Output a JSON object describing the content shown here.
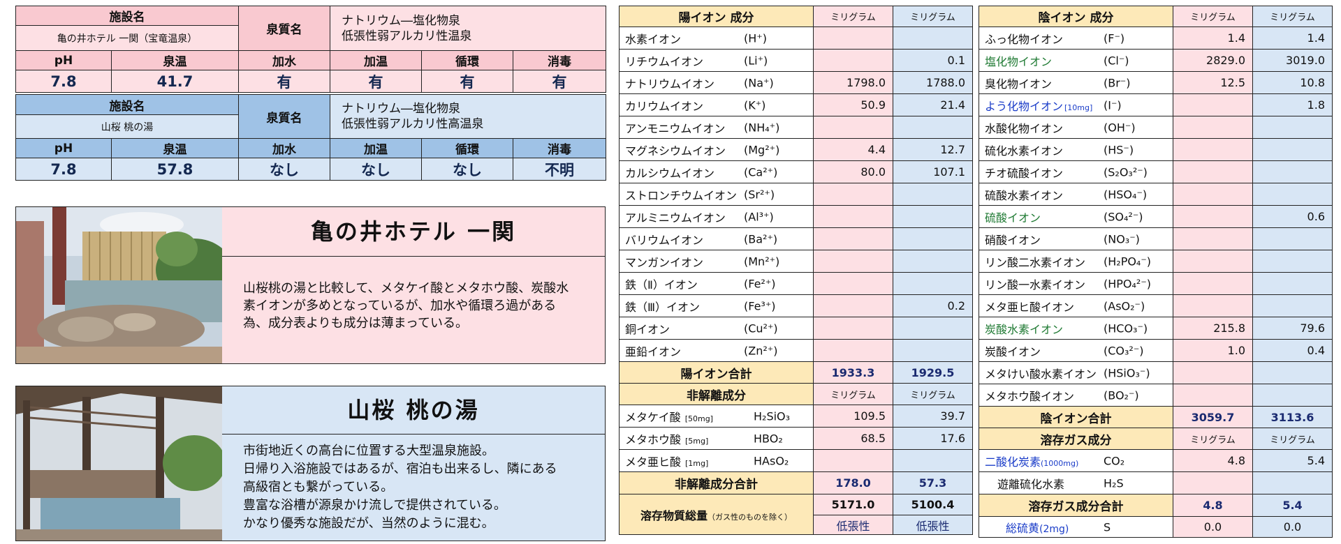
{
  "facility1": {
    "name_header": "施設名",
    "name": "亀の井ホテル 一関（宝竜温泉）",
    "quality_header": "泉質名",
    "quality_lines": [
      "ナトリウム―塩化物泉",
      "低張性弱アルカリ性温泉"
    ],
    "headers": [
      "pH",
      "泉温",
      "加水",
      "加温",
      "循環",
      "消毒"
    ],
    "values": [
      "7.8",
      "41.7",
      "有",
      "有",
      "有",
      "有"
    ]
  },
  "facility2": {
    "name_header": "施設名",
    "name": "山桜 桃の湯",
    "quality_header": "泉質名",
    "quality_lines": [
      "ナトリウム―塩化物泉",
      "低張性弱アルカリ性高温泉"
    ],
    "headers": [
      "pH",
      "泉温",
      "加水",
      "加温",
      "循環",
      "消毒"
    ],
    "values": [
      "7.8",
      "57.8",
      "なし",
      "なし",
      "なし",
      "不明"
    ]
  },
  "card1": {
    "title": "亀の井ホテル 一関",
    "lines": [
      "山桜桃の湯と比較して、メタケイ酸とメタホウ酸、炭酸水",
      "素イオンが多めとなっているが、加水や循環ろ過がある",
      "為、成分表よりも成分は薄まっている。"
    ]
  },
  "card2": {
    "title": "山桜 桃の湯",
    "lines": [
      "市街地近くの高台に位置する大型温泉施設。",
      "日帰り入浴施設ではあるが、宿泊も出来るし、隣にある",
      "高級宿とも繋がっている。",
      "豊富な浴槽が源泉かけ流しで提供されている。",
      "かなり優秀な施設だが、当然のように混む。"
    ]
  },
  "cation": {
    "header": "陽イオン 成分",
    "unit1": "ミリグラム",
    "unit2": "ミリグラム",
    "rows": [
      {
        "name": "水素イオン",
        "formula": "(H⁺)",
        "v1": "",
        "v2": ""
      },
      {
        "name": "リチウムイオン",
        "formula": "(Li⁺)",
        "v1": "",
        "v2": "0.1"
      },
      {
        "name": "ナトリウムイオン",
        "formula": "(Na⁺)",
        "v1": "1798.0",
        "v2": "1788.0"
      },
      {
        "name": "カリウムイオン",
        "formula": "(K⁺)",
        "v1": "50.9",
        "v2": "21.4"
      },
      {
        "name": "アンモニウムイオン",
        "formula": "(NH₄⁺)",
        "v1": "",
        "v2": ""
      },
      {
        "name": "マグネシウムイオン",
        "formula": "(Mg²⁺)",
        "v1": "4.4",
        "v2": "12.7"
      },
      {
        "name": "カルシウムイオン",
        "formula": "(Ca²⁺)",
        "v1": "80.0",
        "v2": "107.1"
      },
      {
        "name": "ストロンチウムイオン",
        "formula": "(Sr²⁺)",
        "v1": "",
        "v2": ""
      },
      {
        "name": "アルミニウムイオン",
        "formula": "(Al³⁺)",
        "v1": "",
        "v2": ""
      },
      {
        "name": "バリウムイオン",
        "formula": "(Ba²⁺)",
        "v1": "",
        "v2": ""
      },
      {
        "name": "マンガンイオン",
        "formula": "(Mn²⁺)",
        "v1": "",
        "v2": ""
      },
      {
        "name": "鉄（Ⅱ）イオン",
        "formula": "(Fe²⁺)",
        "v1": "",
        "v2": ""
      },
      {
        "name": "鉄（Ⅲ）イオン",
        "formula": "(Fe³⁺)",
        "v1": "",
        "v2": "0.2"
      },
      {
        "name": "銅イオン",
        "formula": "(Cu²⁺)",
        "v1": "",
        "v2": ""
      },
      {
        "name": "亜鉛イオン",
        "formula": "(Zn²⁺)",
        "v1": "",
        "v2": ""
      }
    ],
    "total_label": "陽イオン合計",
    "total1": "1933.3",
    "total2": "1929.5"
  },
  "nondiss": {
    "header": "非解離成分",
    "unit1": "ミリグラム",
    "unit2": "ミリグラム",
    "rows": [
      {
        "name": "メタケイ酸",
        "limit": "[50mg]",
        "formula": "H₂SiO₃",
        "v1": "109.5",
        "v2": "39.7"
      },
      {
        "name": "メタホウ酸",
        "limit": "[5mg]",
        "formula": "HBO₂",
        "v1": "68.5",
        "v2": "17.6"
      },
      {
        "name": "メタ亜ヒ酸",
        "limit": "[1mg]",
        "formula": "HAsO₂",
        "v1": "",
        "v2": ""
      }
    ],
    "total_label": "非解離成分合計",
    "total1": "178.0",
    "total2": "57.3",
    "dissolved_label": "溶存物質総量",
    "dissolved_note": "（ガス性のものを除く）",
    "dissolved1": "5171.0",
    "dissolved2": "5100.4",
    "tonicity1": "低張性",
    "tonicity2": "低張性"
  },
  "anion": {
    "header": "陰イオン 成分",
    "unit1": "ミリグラム",
    "unit2": "ミリグラム",
    "rows": [
      {
        "name": "ふっ化物イオン",
        "formula": "(F⁻)",
        "v1": "1.4",
        "v2": "1.4",
        "color": ""
      },
      {
        "name": "塩化物イオン",
        "formula": "(Cl⁻)",
        "v1": "2829.0",
        "v2": "3019.0",
        "color": "green"
      },
      {
        "name": "臭化物イオン",
        "formula": "(Br⁻)",
        "v1": "12.5",
        "v2": "10.8",
        "color": ""
      },
      {
        "name": "よう化物イオン",
        "formula": "(I⁻)",
        "v1": "",
        "v2": "1.8",
        "color": "blue",
        "limit": "[10mg]"
      },
      {
        "name": "水酸化物イオン",
        "formula": "(OH⁻)",
        "v1": "",
        "v2": "",
        "color": ""
      },
      {
        "name": "硫化水素イオン",
        "formula": "(HS⁻)",
        "v1": "",
        "v2": "",
        "color": ""
      },
      {
        "name": "チオ硫酸イオン",
        "formula": "(S₂O₃²⁻)",
        "v1": "",
        "v2": "",
        "color": ""
      },
      {
        "name": "硫酸水素イオン",
        "formula": "(HSO₄⁻)",
        "v1": "",
        "v2": "",
        "color": ""
      },
      {
        "name": "硫酸イオン",
        "formula": "(SO₄²⁻)",
        "v1": "",
        "v2": "0.6",
        "color": "green"
      },
      {
        "name": "硝酸イオン",
        "formula": "(NO₃⁻)",
        "v1": "",
        "v2": "",
        "color": ""
      },
      {
        "name": "リン酸二水素イオン",
        "formula": "(H₂PO₄⁻)",
        "v1": "",
        "v2": "",
        "color": ""
      },
      {
        "name": "リン酸一水素イオン",
        "formula": "(HPO₄²⁻)",
        "v1": "",
        "v2": "",
        "color": ""
      },
      {
        "name": "メタ亜ヒ酸イオン",
        "formula": "(AsO₂⁻)",
        "v1": "",
        "v2": "",
        "color": ""
      },
      {
        "name": "炭酸水素イオン",
        "formula": "(HCO₃⁻)",
        "v1": "215.8",
        "v2": "79.6",
        "color": "green"
      },
      {
        "name": "炭酸イオン",
        "formula": "(CO₃²⁻)",
        "v1": "1.0",
        "v2": "0.4",
        "color": ""
      },
      {
        "name": "メタけい酸水素イオン",
        "formula": "(HSiO₃⁻)",
        "v1": "",
        "v2": "",
        "color": ""
      },
      {
        "name": "メタホウ酸イオン",
        "formula": "(BO₂⁻)",
        "v1": "",
        "v2": "",
        "color": ""
      }
    ],
    "total_label": "陰イオン合計",
    "total1": "3059.7",
    "total2": "3113.6"
  },
  "gas": {
    "header": "溶存ガス成分",
    "unit1": "ミリグラム",
    "unit2": "ミリグラム",
    "rows": [
      {
        "name": "二酸化炭素",
        "limit": "(1000mg)",
        "formula": "CO₂",
        "v1": "4.8",
        "v2": "5.4",
        "color": "blue"
      },
      {
        "name": "遊離硫化水素",
        "limit": "",
        "formula": "H₂S",
        "v1": "",
        "v2": "",
        "color": ""
      }
    ],
    "total_label": "溶存ガス成分合計",
    "total1": "4.8",
    "total2": "5.4",
    "sulfur_label": "総硫黄",
    "sulfur_limit": "(2mg)",
    "sulfur_formula": "S",
    "sulfur1": "0.0",
    "sulfur2": "0.0"
  },
  "colors": {
    "pink": "#fde0e4",
    "blue": "#d8e6f5",
    "yellow": "#fde9b8",
    "green": "#1f7a33",
    "link_blue": "#1a3cc8"
  }
}
